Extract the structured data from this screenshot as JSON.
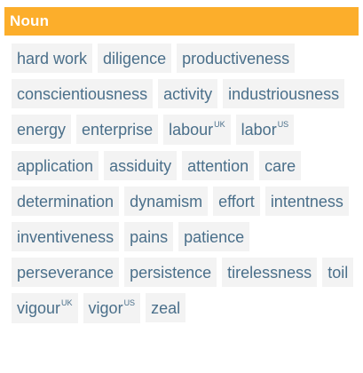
{
  "header": {
    "title": "Noun",
    "bg_color": "#fcae2b"
  },
  "colors": {
    "tag_text": "#4a6f8a",
    "tag_bg": "#f3f3f3"
  },
  "synonyms": [
    {
      "word": "hard work",
      "region": ""
    },
    {
      "word": "diligence",
      "region": ""
    },
    {
      "word": "productiveness",
      "region": ""
    },
    {
      "word": "conscientiousness",
      "region": ""
    },
    {
      "word": "activity",
      "region": ""
    },
    {
      "word": "industriousness",
      "region": ""
    },
    {
      "word": "energy",
      "region": ""
    },
    {
      "word": "enterprise",
      "region": ""
    },
    {
      "word": "labour",
      "region": "UK"
    },
    {
      "word": "labor",
      "region": "US"
    },
    {
      "word": "application",
      "region": ""
    },
    {
      "word": "assiduity",
      "region": ""
    },
    {
      "word": "attention",
      "region": ""
    },
    {
      "word": "care",
      "region": ""
    },
    {
      "word": "determination",
      "region": ""
    },
    {
      "word": "dynamism",
      "region": ""
    },
    {
      "word": "effort",
      "region": ""
    },
    {
      "word": "intentness",
      "region": ""
    },
    {
      "word": "inventiveness",
      "region": ""
    },
    {
      "word": "pains",
      "region": ""
    },
    {
      "word": "patience",
      "region": ""
    },
    {
      "word": "perseverance",
      "region": ""
    },
    {
      "word": "persistence",
      "region": ""
    },
    {
      "word": "tirelessness",
      "region": ""
    },
    {
      "word": "toil",
      "region": ""
    },
    {
      "word": "vigour",
      "region": "UK"
    },
    {
      "word": "vigor",
      "region": "US"
    },
    {
      "word": "zeal",
      "region": ""
    }
  ]
}
